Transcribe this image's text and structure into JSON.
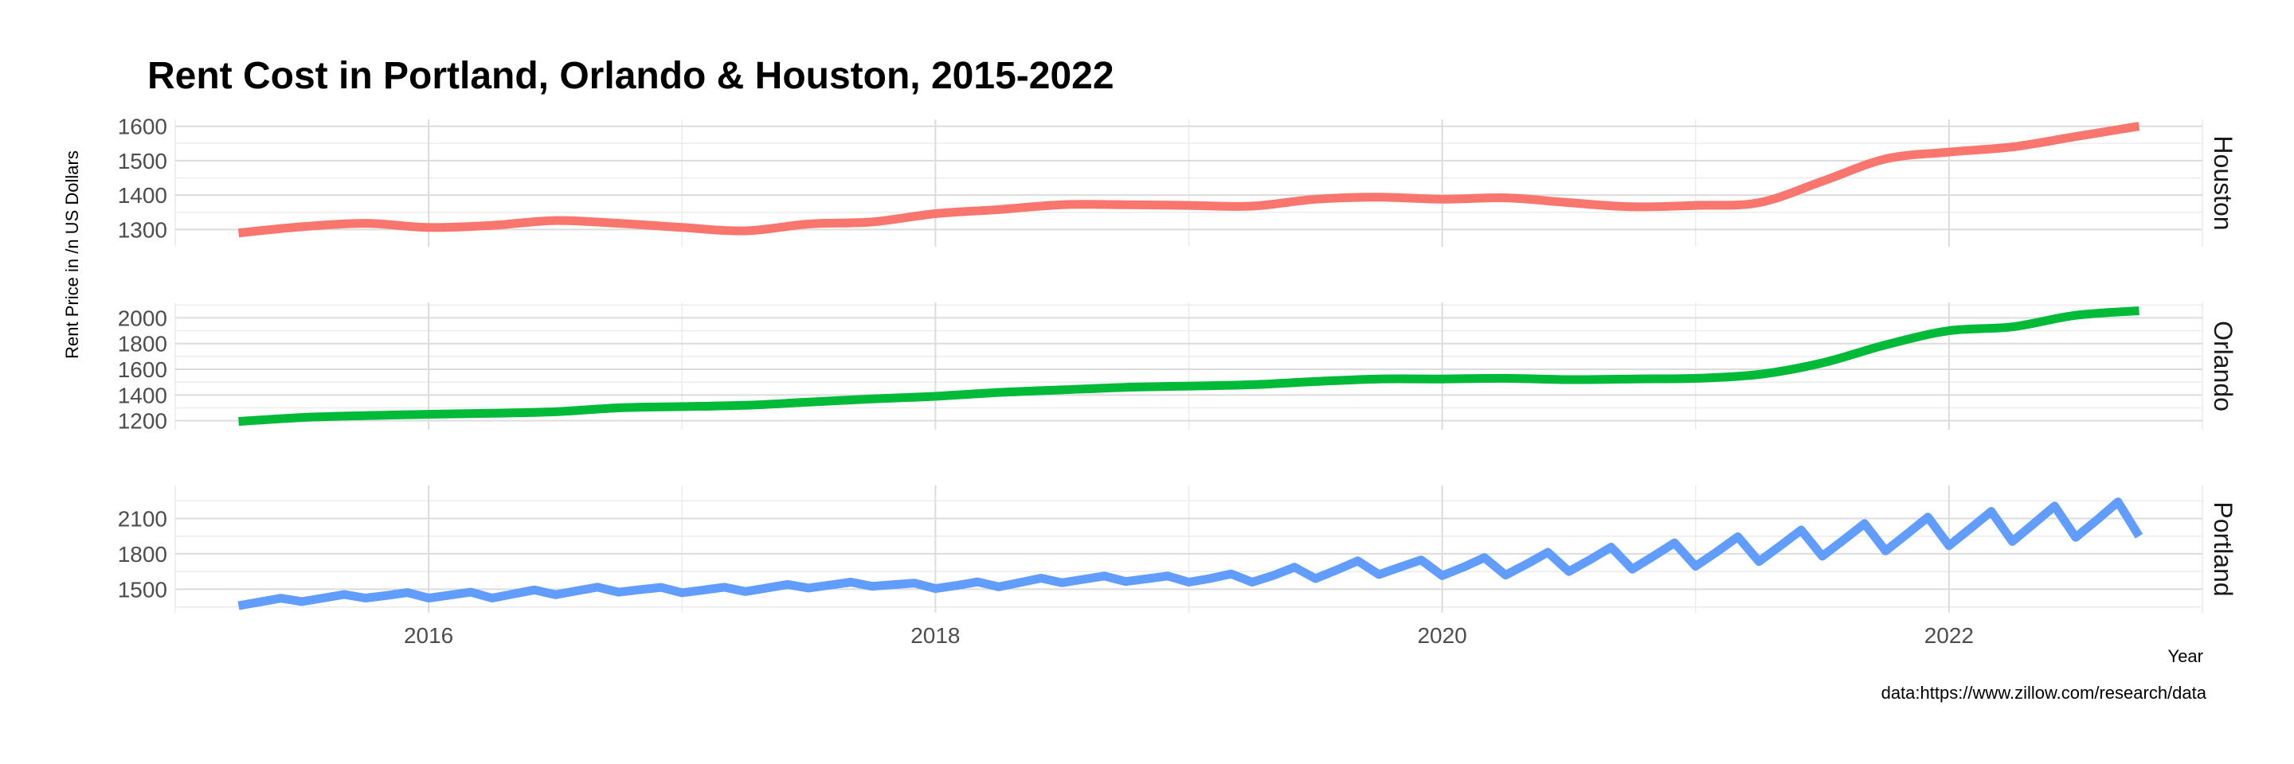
{
  "chart_data": {
    "type": "line",
    "title": "Rent Cost in Portland, Orlando & Houston, 2015-2022",
    "xlabel": "Year",
    "ylabel": "Rent Price in /n US Dollars",
    "caption": "data:https://www.zillow.com/research/data",
    "x_ticks": [
      "2016",
      "2018",
      "2020",
      "2022"
    ],
    "xlim": [
      "2015-01",
      "2023-01"
    ],
    "grid": true,
    "facets": [
      {
        "name": "Houston",
        "color": "#F8766D",
        "ylim": [
          1250,
          1620
        ],
        "y_ticks": [
          1300,
          1400,
          1500,
          1600
        ],
        "points": [
          [
            "2015-04",
            1290
          ],
          [
            "2015-07",
            1308
          ],
          [
            "2015-10",
            1318
          ],
          [
            "2016-01",
            1306
          ],
          [
            "2016-04",
            1312
          ],
          [
            "2016-07",
            1326
          ],
          [
            "2016-10",
            1318
          ],
          [
            "2017-01",
            1306
          ],
          [
            "2017-04",
            1296
          ],
          [
            "2017-07",
            1316
          ],
          [
            "2017-10",
            1322
          ],
          [
            "2018-01",
            1346
          ],
          [
            "2018-04",
            1358
          ],
          [
            "2018-07",
            1372
          ],
          [
            "2018-10",
            1372
          ],
          [
            "2019-01",
            1370
          ],
          [
            "2019-04",
            1368
          ],
          [
            "2019-07",
            1388
          ],
          [
            "2019-10",
            1394
          ],
          [
            "2020-01",
            1388
          ],
          [
            "2020-04",
            1392
          ],
          [
            "2020-07",
            1378
          ],
          [
            "2020-10",
            1366
          ],
          [
            "2021-01",
            1370
          ],
          [
            "2021-04",
            1378
          ],
          [
            "2021-07",
            1440
          ],
          [
            "2021-10",
            1505
          ],
          [
            "2022-01",
            1525
          ],
          [
            "2022-04",
            1540
          ],
          [
            "2022-07",
            1570
          ],
          [
            "2022-10",
            1600
          ]
        ]
      },
      {
        "name": "Orlando",
        "color": "#00BA38",
        "ylim": [
          1130,
          2120
        ],
        "y_ticks": [
          1200,
          1400,
          1600,
          1800,
          2000
        ],
        "points": [
          [
            "2015-04",
            1195
          ],
          [
            "2015-07",
            1225
          ],
          [
            "2015-10",
            1240
          ],
          [
            "2016-01",
            1250
          ],
          [
            "2016-04",
            1258
          ],
          [
            "2016-07",
            1270
          ],
          [
            "2016-10",
            1300
          ],
          [
            "2017-01",
            1310
          ],
          [
            "2017-04",
            1320
          ],
          [
            "2017-07",
            1345
          ],
          [
            "2017-10",
            1370
          ],
          [
            "2018-01",
            1390
          ],
          [
            "2018-04",
            1420
          ],
          [
            "2018-07",
            1440
          ],
          [
            "2018-10",
            1460
          ],
          [
            "2019-01",
            1470
          ],
          [
            "2019-04",
            1480
          ],
          [
            "2019-07",
            1505
          ],
          [
            "2019-10",
            1525
          ],
          [
            "2020-01",
            1525
          ],
          [
            "2020-04",
            1530
          ],
          [
            "2020-07",
            1520
          ],
          [
            "2020-10",
            1525
          ],
          [
            "2021-01",
            1530
          ],
          [
            "2021-04",
            1560
          ],
          [
            "2021-07",
            1650
          ],
          [
            "2021-10",
            1790
          ],
          [
            "2022-01",
            1900
          ],
          [
            "2022-04",
            1930
          ],
          [
            "2022-07",
            2020
          ],
          [
            "2022-10",
            2055
          ]
        ]
      },
      {
        "name": "Portland",
        "color": "#619CFF",
        "ylim": [
          1300,
          2380
        ],
        "y_ticks": [
          1500,
          1800,
          2100
        ],
        "points": [
          [
            "2015-04",
            1380
          ],
          [
            "2015-07",
            1415
          ],
          [
            "2015-10",
            1445
          ],
          [
            "2016-01",
            1450
          ],
          [
            "2016-04",
            1450
          ],
          [
            "2016-07",
            1478
          ],
          [
            "2016-10",
            1500
          ],
          [
            "2017-01",
            1490
          ],
          [
            "2017-04",
            1500
          ],
          [
            "2017-07",
            1530
          ],
          [
            "2017-10",
            1545
          ],
          [
            "2018-01",
            1525
          ],
          [
            "2018-04",
            1545
          ],
          [
            "2018-07",
            1580
          ],
          [
            "2018-10",
            1590
          ],
          [
            "2019-01",
            1585
          ],
          [
            "2019-04",
            1600
          ],
          [
            "2019-07",
            1650
          ],
          [
            "2019-10",
            1690
          ],
          [
            "2020-01",
            1680
          ],
          [
            "2020-04",
            1700
          ],
          [
            "2020-07",
            1740
          ],
          [
            "2020-10",
            1770
          ],
          [
            "2021-01",
            1800
          ],
          [
            "2021-04",
            1850
          ],
          [
            "2021-07",
            1900
          ],
          [
            "2021-10",
            1950
          ],
          [
            "2022-01",
            2000
          ],
          [
            "2022-04",
            2040
          ],
          [
            "2022-07",
            2080
          ],
          [
            "2022-10",
            2100
          ]
        ],
        "seasonal_amplitude": [
          20,
          20,
          20,
          25,
          25,
          25,
          25,
          20,
          20,
          20,
          20,
          20,
          25,
          25,
          25,
          25,
          40,
          60,
          65,
          65,
          80,
          90,
          100,
          105,
          115,
          120,
          125,
          130,
          135,
          140,
          150
        ]
      }
    ]
  }
}
